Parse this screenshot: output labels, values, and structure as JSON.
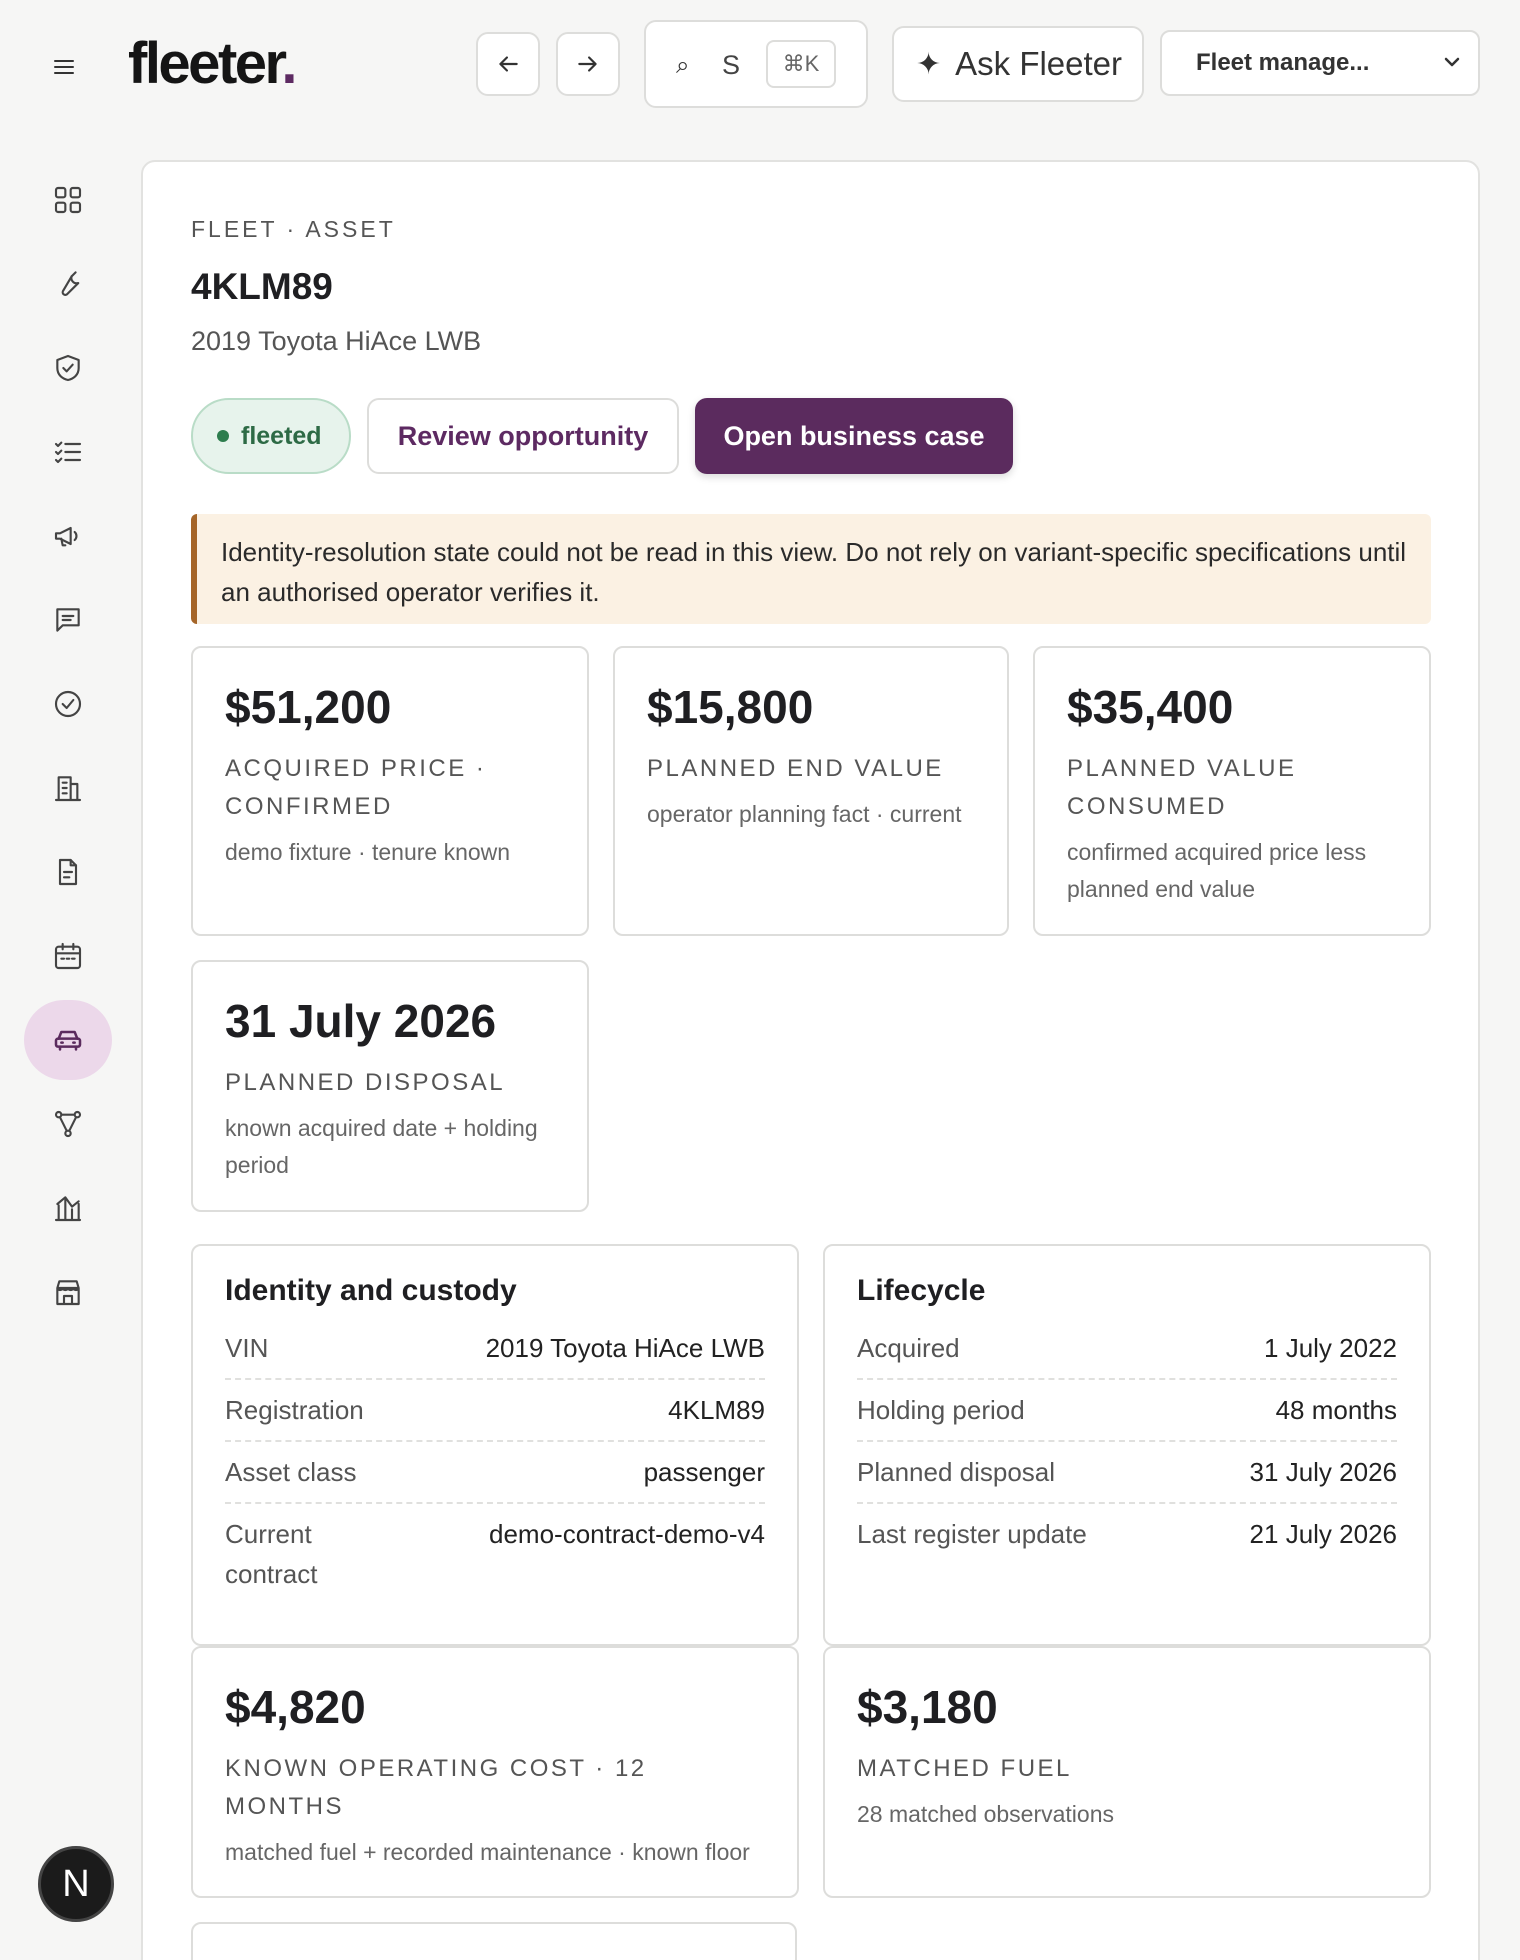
{
  "header": {
    "logo_text": "fleeter",
    "logo_dot": ".",
    "search": {
      "icon": "search-icon",
      "letter": "S",
      "shortcut": "⌘K"
    },
    "ask_label": "Ask Fleeter",
    "workspace_select": "Fleet manage..."
  },
  "sidebar": {
    "items": [
      {
        "icon": "grid-icon",
        "active": false
      },
      {
        "icon": "wrench-icon",
        "active": false
      },
      {
        "icon": "shield-check-icon",
        "active": false
      },
      {
        "icon": "checklist-icon",
        "active": false
      },
      {
        "icon": "megaphone-icon",
        "active": false
      },
      {
        "icon": "message-icon",
        "active": false
      },
      {
        "icon": "check-circle-icon",
        "active": false
      },
      {
        "icon": "building-icon",
        "active": false
      },
      {
        "icon": "document-icon",
        "active": false
      },
      {
        "icon": "calendar-icon",
        "active": false
      },
      {
        "icon": "car-icon",
        "active": true
      },
      {
        "icon": "network-icon",
        "active": false
      },
      {
        "icon": "chart-icon",
        "active": false
      },
      {
        "icon": "store-icon",
        "active": false
      }
    ],
    "avatar_initial": "N"
  },
  "asset": {
    "eyebrow": "FLEET · ASSET",
    "id": "4KLM89",
    "subtitle": "2019 Toyota HiAce LWB",
    "status": "fleeted",
    "review_label": "Review opportunity",
    "open_label": "Open business case"
  },
  "alert": {
    "text": "Identity-resolution state could not be read in this view. Do not rely on variant-specific specifications until an authorised operator verifies it."
  },
  "metrics": [
    {
      "value": "$51,200",
      "label": "ACQUIRED PRICE · CONFIRMED",
      "note": "demo fixture · tenure known"
    },
    {
      "value": "$15,800",
      "label": "PLANNED END VALUE",
      "note": "operator planning fact · current"
    },
    {
      "value": "$35,400",
      "label": "PLANNED VALUE CONSUMED",
      "note": "confirmed acquired price less planned end value"
    },
    {
      "value": "31 July 2026",
      "label": "PLANNED DISPOSAL",
      "note": "known acquired date + holding period"
    }
  ],
  "identity": {
    "title": "Identity and custody",
    "rows": [
      {
        "k": "VIN",
        "v": "2019 Toyota HiAce LWB"
      },
      {
        "k": "Registration",
        "v": "4KLM89"
      },
      {
        "k": "Asset class",
        "v": "passenger"
      },
      {
        "k": "Current contract",
        "v": "demo-contract-demo-v4"
      }
    ]
  },
  "lifecycle": {
    "title": "Lifecycle",
    "rows": [
      {
        "k": "Acquired",
        "v": "1 July 2022"
      },
      {
        "k": "Holding period",
        "v": "48 months"
      },
      {
        "k": "Planned disposal",
        "v": "31 July 2026"
      },
      {
        "k": "Last register update",
        "v": "21 July 2026"
      }
    ]
  },
  "costs": [
    {
      "value": "$4,820",
      "label": "KNOWN OPERATING COST · 12 MONTHS",
      "note": "matched fuel + recorded maintenance · known floor"
    },
    {
      "value": "$3,180",
      "label": "MATCHED FUEL",
      "note": "28 matched observations"
    }
  ]
}
